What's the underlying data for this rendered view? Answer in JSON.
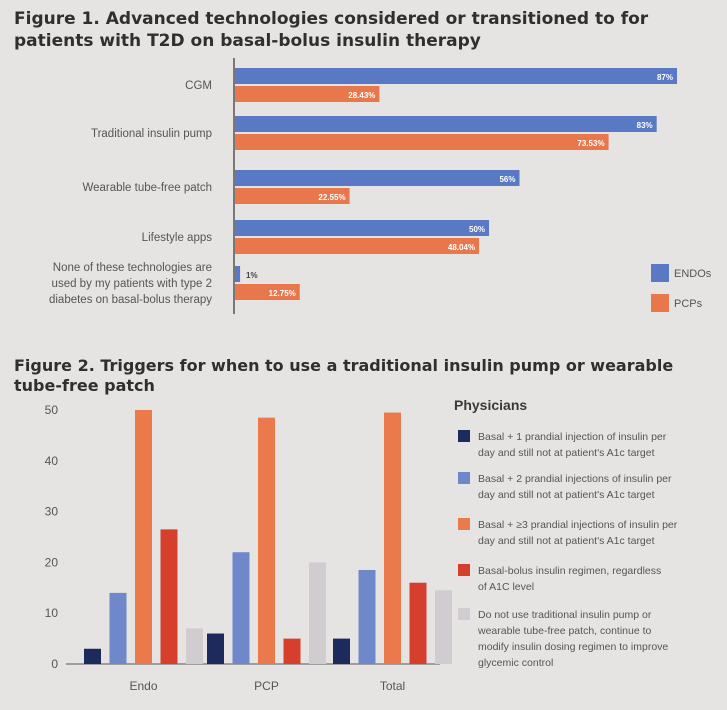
{
  "colors": {
    "endo": "#5a79c4",
    "pcp": "#e8774b",
    "dark": "#1d2a5c",
    "blue": "#6e88c9",
    "orange": "#ea7a4c",
    "red": "#d63f2b",
    "light": "#d1ccd0",
    "axis": "#555555",
    "text": "#555555"
  },
  "fig1": {
    "title": "Figure 1. Advanced technologies considered or transitioned to for patients with T2D on basal-bolus insulin therapy"
  },
  "fig2": {
    "title": "Figure 2. Triggers for when to use a traditional insulin pump or wearable tube-free patch"
  },
  "chart_data": [
    {
      "type": "bar",
      "orientation": "horizontal",
      "title": "Figure 1. Advanced technologies considered or transitioned to for patients with T2D on basal-bolus insulin therapy",
      "categories": [
        "CGM",
        "Traditional insulin pump",
        "Wearable tube-free patch",
        "Lifestyle apps",
        "None of these technologies are used by my patients with type 2 diabetes on basal-bolus therapy"
      ],
      "series": [
        {
          "name": "ENDOs",
          "values": [
            87,
            83,
            56,
            50,
            1
          ],
          "labels": [
            "87%",
            "83%",
            "56%",
            "50%",
            "1%"
          ]
        },
        {
          "name": "PCPs",
          "values": [
            28.43,
            73.53,
            22.55,
            48.04,
            12.75
          ],
          "labels": [
            "28.43%",
            "73.53%",
            "22.55%",
            "48.04%",
            "12.75%"
          ]
        }
      ],
      "xlim": [
        0,
        87
      ],
      "legend_position": "bottom-right",
      "grid": false
    },
    {
      "type": "bar",
      "title": "Figure 2. Triggers for when to use a traditional insulin pump or wearable tube-free patch",
      "categories": [
        "Endo",
        "PCP",
        "Total"
      ],
      "series": [
        {
          "name": "Basal + 1 prandial injection of insulin per day and still not at patient's A1c target",
          "values": [
            3,
            6,
            5
          ]
        },
        {
          "name": "Basal + 2 prandial injections of insulin per day and still not at patient's A1c target",
          "values": [
            14,
            22,
            18.5
          ]
        },
        {
          "name": "Basal + ≥3 prandial injections of insulin per day and still not at patient's A1c target",
          "values": [
            50,
            48.5,
            49.5
          ]
        },
        {
          "name": "Basal-bolus insulin regimen, regardless of A1C level",
          "values": [
            26.5,
            5,
            16
          ]
        },
        {
          "name": "Do not use traditional insulin pump or wearable tube-free patch, continue to modify insulin dosing regimen to improve glycemic control",
          "values": [
            7,
            20,
            14.5
          ]
        }
      ],
      "legend_title": "Physicians",
      "legend_position": "right",
      "yticks": [
        0,
        10,
        20,
        30,
        40,
        50
      ],
      "ylim": [
        0,
        50
      ],
      "grid": false
    }
  ]
}
